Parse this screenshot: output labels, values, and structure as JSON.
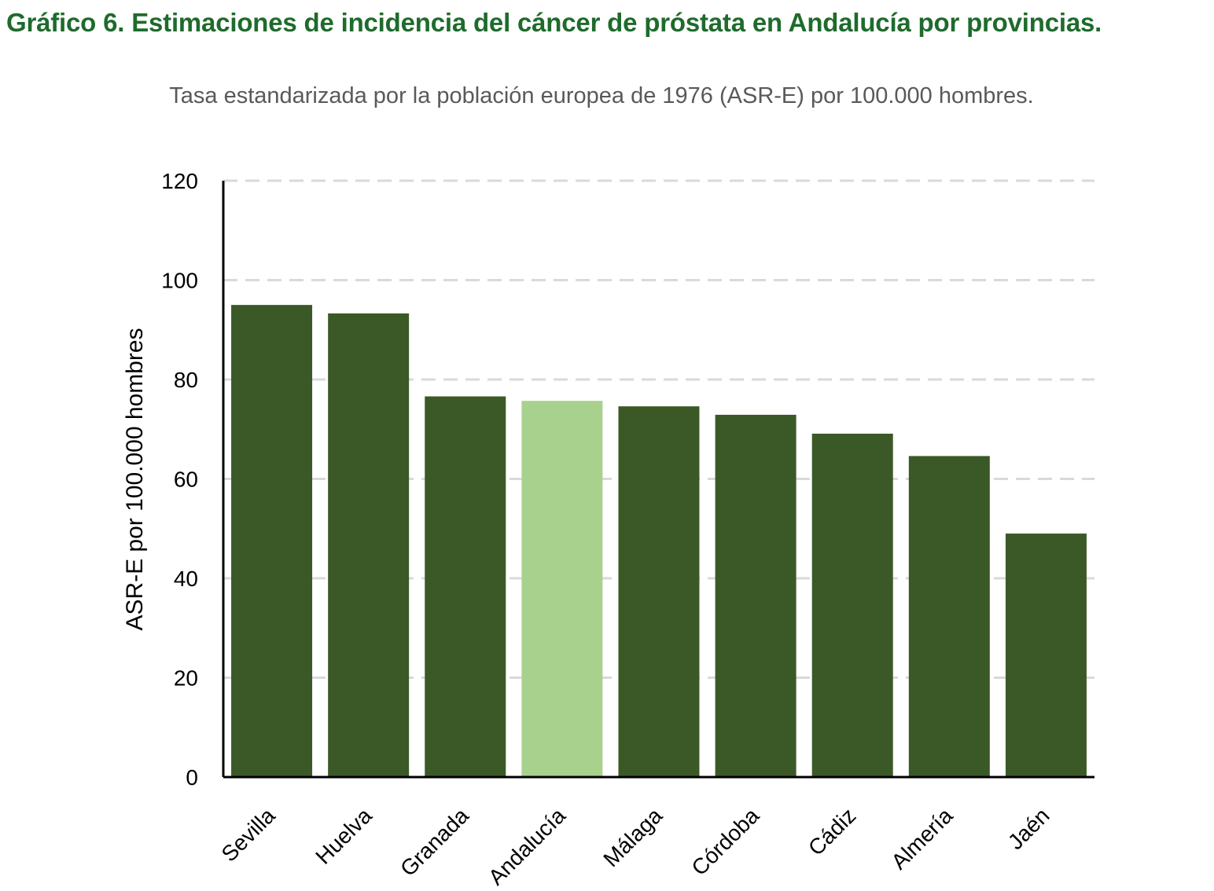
{
  "title": "Gráfico 6. Estimaciones de incidencia del cáncer de próstata en Andalucía por provincias.",
  "subtitle": "Tasa estandarizada por la población europea de 1976 (ASR-E) por 100.000 hombres.",
  "colors": {
    "title": "#1e6b2c",
    "bar": "#3b5926",
    "bar_highlight": "#a9d18e",
    "gridline": "#d9d9d9",
    "axis": "#000000"
  },
  "chart_data": {
    "type": "bar",
    "title": "Gráfico 6. Estimaciones de incidencia del cáncer de próstata en Andalucía por provincias.",
    "subtitle": "Tasa estandarizada por la población europea de 1976 (ASR-E) por 100.000 hombres.",
    "xlabel": "",
    "ylabel": "ASR-E por 100.000 hombres",
    "categories": [
      "Sevilla",
      "Huelva",
      "Granada",
      "Andalucía",
      "Málaga",
      "Córdoba",
      "Cádiz",
      "Almería",
      "Jaén"
    ],
    "values": [
      95.0,
      93.3,
      76.6,
      75.7,
      74.6,
      72.9,
      69.1,
      64.6,
      49.0
    ],
    "highlight": "Andalucía",
    "ylim": [
      0,
      120
    ],
    "yticks": [
      0,
      20,
      40,
      60,
      80,
      100,
      120
    ],
    "grid": true,
    "legend": "none"
  }
}
